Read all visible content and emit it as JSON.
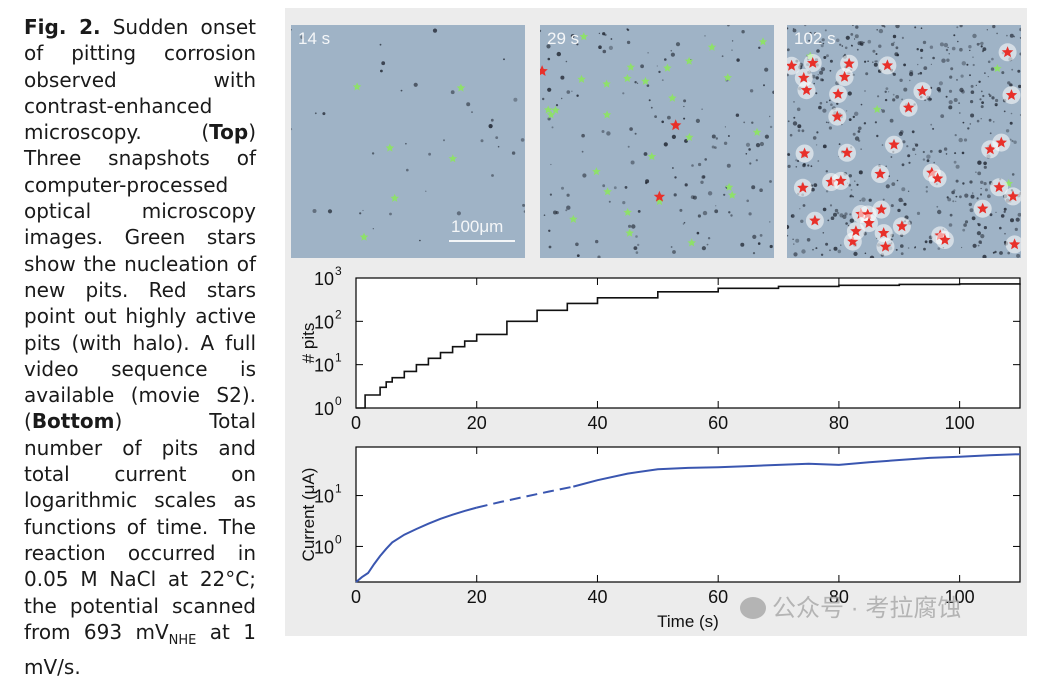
{
  "caption": {
    "fig_label": "Fig. 2.",
    "intro": " Sudden onset of pitting corrosion observed with contrast-enhanced microscopy. (",
    "top_label": "Top",
    "top_text": ") Three snapshots of computer-processed optical microscopy images. Green stars show the nucleation of new pits. Red stars point out highly active pits (with halo). A full video sequence is available (movie S2). (",
    "bottom_label": "Bottom",
    "bottom_text": ") Total number of pits and total current on logarithmic scales as functions of time. The reaction occurred in 0.05 M NaCl at 22°C; the potential scanned from 693 mV",
    "subscript": "NHE",
    "end_text": " at 1 mV/s."
  },
  "micrographs": [
    {
      "time": "14 s",
      "green_stars": 6,
      "red_stars": 0
    },
    {
      "time": "29 s",
      "green_stars": 28,
      "red_stars": 3
    },
    {
      "time": "102 s",
      "green_stars": 4,
      "red_stars": 40
    }
  ],
  "scale_bar": "100μm",
  "colors": {
    "green_star": "#8ee06a",
    "red_star": "#e8302a",
    "current_line": "#3a56b0",
    "micro_bg": "#9fb3c6"
  },
  "chart_data": [
    {
      "type": "line",
      "ylabel": "# pits",
      "log_y": true,
      "xlim": [
        0,
        110
      ],
      "ylim": [
        1,
        1000
      ],
      "x_ticks": [
        "0",
        "20",
        "40",
        "60",
        "80",
        "100"
      ],
      "x_tick_values": [
        0,
        20,
        40,
        60,
        80,
        100
      ],
      "y_ticks": [
        "10",
        "10",
        "10",
        "10"
      ],
      "y_tick_exponents": [
        "0",
        "1",
        "2",
        "3"
      ],
      "y_tick_values": [
        1,
        10,
        100,
        1000
      ],
      "x": [
        0,
        1,
        1.5,
        2,
        3,
        4,
        5,
        6,
        8,
        10,
        12,
        14,
        16,
        18,
        20,
        25,
        30,
        35,
        40,
        50,
        60,
        70,
        80,
        90,
        100,
        110
      ],
      "y": [
        1,
        1,
        2,
        2,
        2,
        3,
        4,
        5,
        7,
        10,
        14,
        19,
        26,
        35,
        50,
        100,
        180,
        260,
        350,
        480,
        580,
        640,
        680,
        710,
        730,
        750
      ]
    },
    {
      "type": "line",
      "xlabel": "Time (s)",
      "ylabel": "Current (μA)",
      "log_y": true,
      "xlim": [
        0,
        110
      ],
      "ylim": [
        0.2,
        90
      ],
      "x_ticks": [
        "0",
        "20",
        "40",
        "60",
        "80",
        "100"
      ],
      "x_tick_values": [
        0,
        20,
        40,
        60,
        80,
        100
      ],
      "y_ticks": [
        "10",
        "10"
      ],
      "y_tick_exponents": [
        "0",
        "1"
      ],
      "y_tick_values": [
        1,
        10
      ],
      "series": [
        {
          "style": "solid",
          "x": [
            0,
            1,
            2,
            3,
            4,
            5,
            6,
            8,
            10,
            12,
            14,
            16,
            18,
            20
          ],
          "y": [
            0.2,
            0.25,
            0.3,
            0.45,
            0.65,
            0.9,
            1.2,
            1.7,
            2.2,
            2.8,
            3.5,
            4.2,
            5.0,
            5.8
          ]
        },
        {
          "style": "dashed",
          "x": [
            20,
            24,
            28,
            32,
            36
          ],
          "y": [
            5.8,
            7.5,
            9.5,
            12,
            15
          ]
        },
        {
          "style": "solid",
          "x": [
            36,
            40,
            45,
            50,
            55,
            60,
            65,
            70,
            75,
            80,
            85,
            90,
            95,
            100,
            105,
            110
          ],
          "y": [
            15,
            20,
            27,
            33,
            35,
            36,
            38,
            40,
            42,
            40,
            45,
            50,
            55,
            58,
            62,
            65
          ]
        }
      ]
    }
  ],
  "watermark": "公众号 · 考拉腐蚀"
}
